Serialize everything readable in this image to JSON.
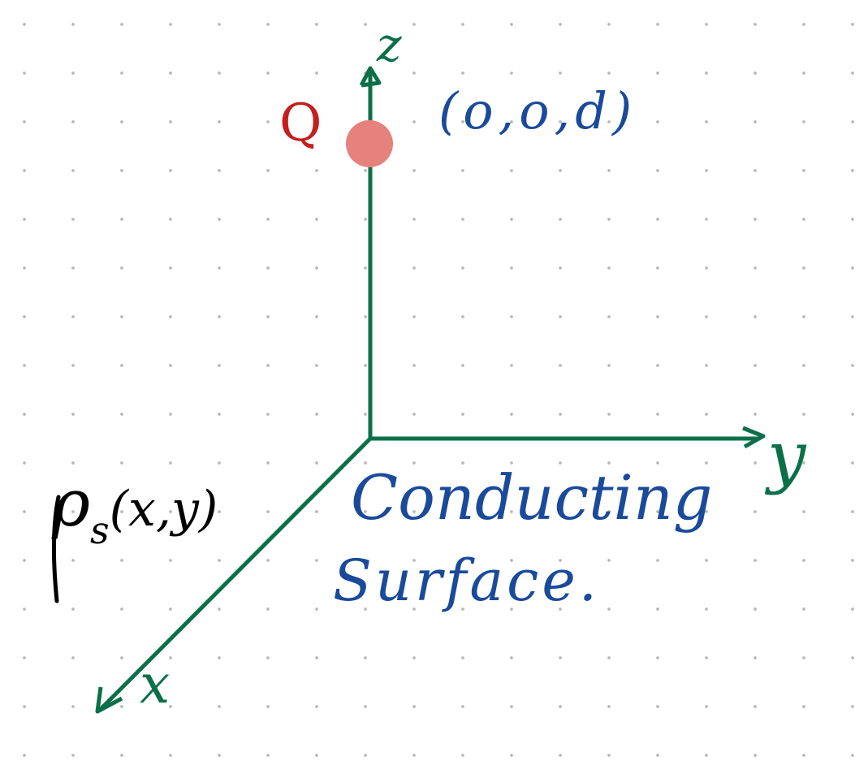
{
  "colors": {
    "axis": "#0b7049",
    "charge": "#c41e1e",
    "charge_dot": "#e7817e",
    "annotation": "#1a4a9a",
    "density": "#000000",
    "grid_dot": "#b9b9b9"
  },
  "axes": {
    "z_label": "z",
    "y_label": "y",
    "x_label": "x"
  },
  "charge": {
    "symbol": "Q",
    "position": "(o,o,d)"
  },
  "surface": {
    "line1": "Conducting",
    "line2": "Surface."
  },
  "density": {
    "symbol": "ρ",
    "subscript": "s",
    "args": "(x,y)"
  }
}
